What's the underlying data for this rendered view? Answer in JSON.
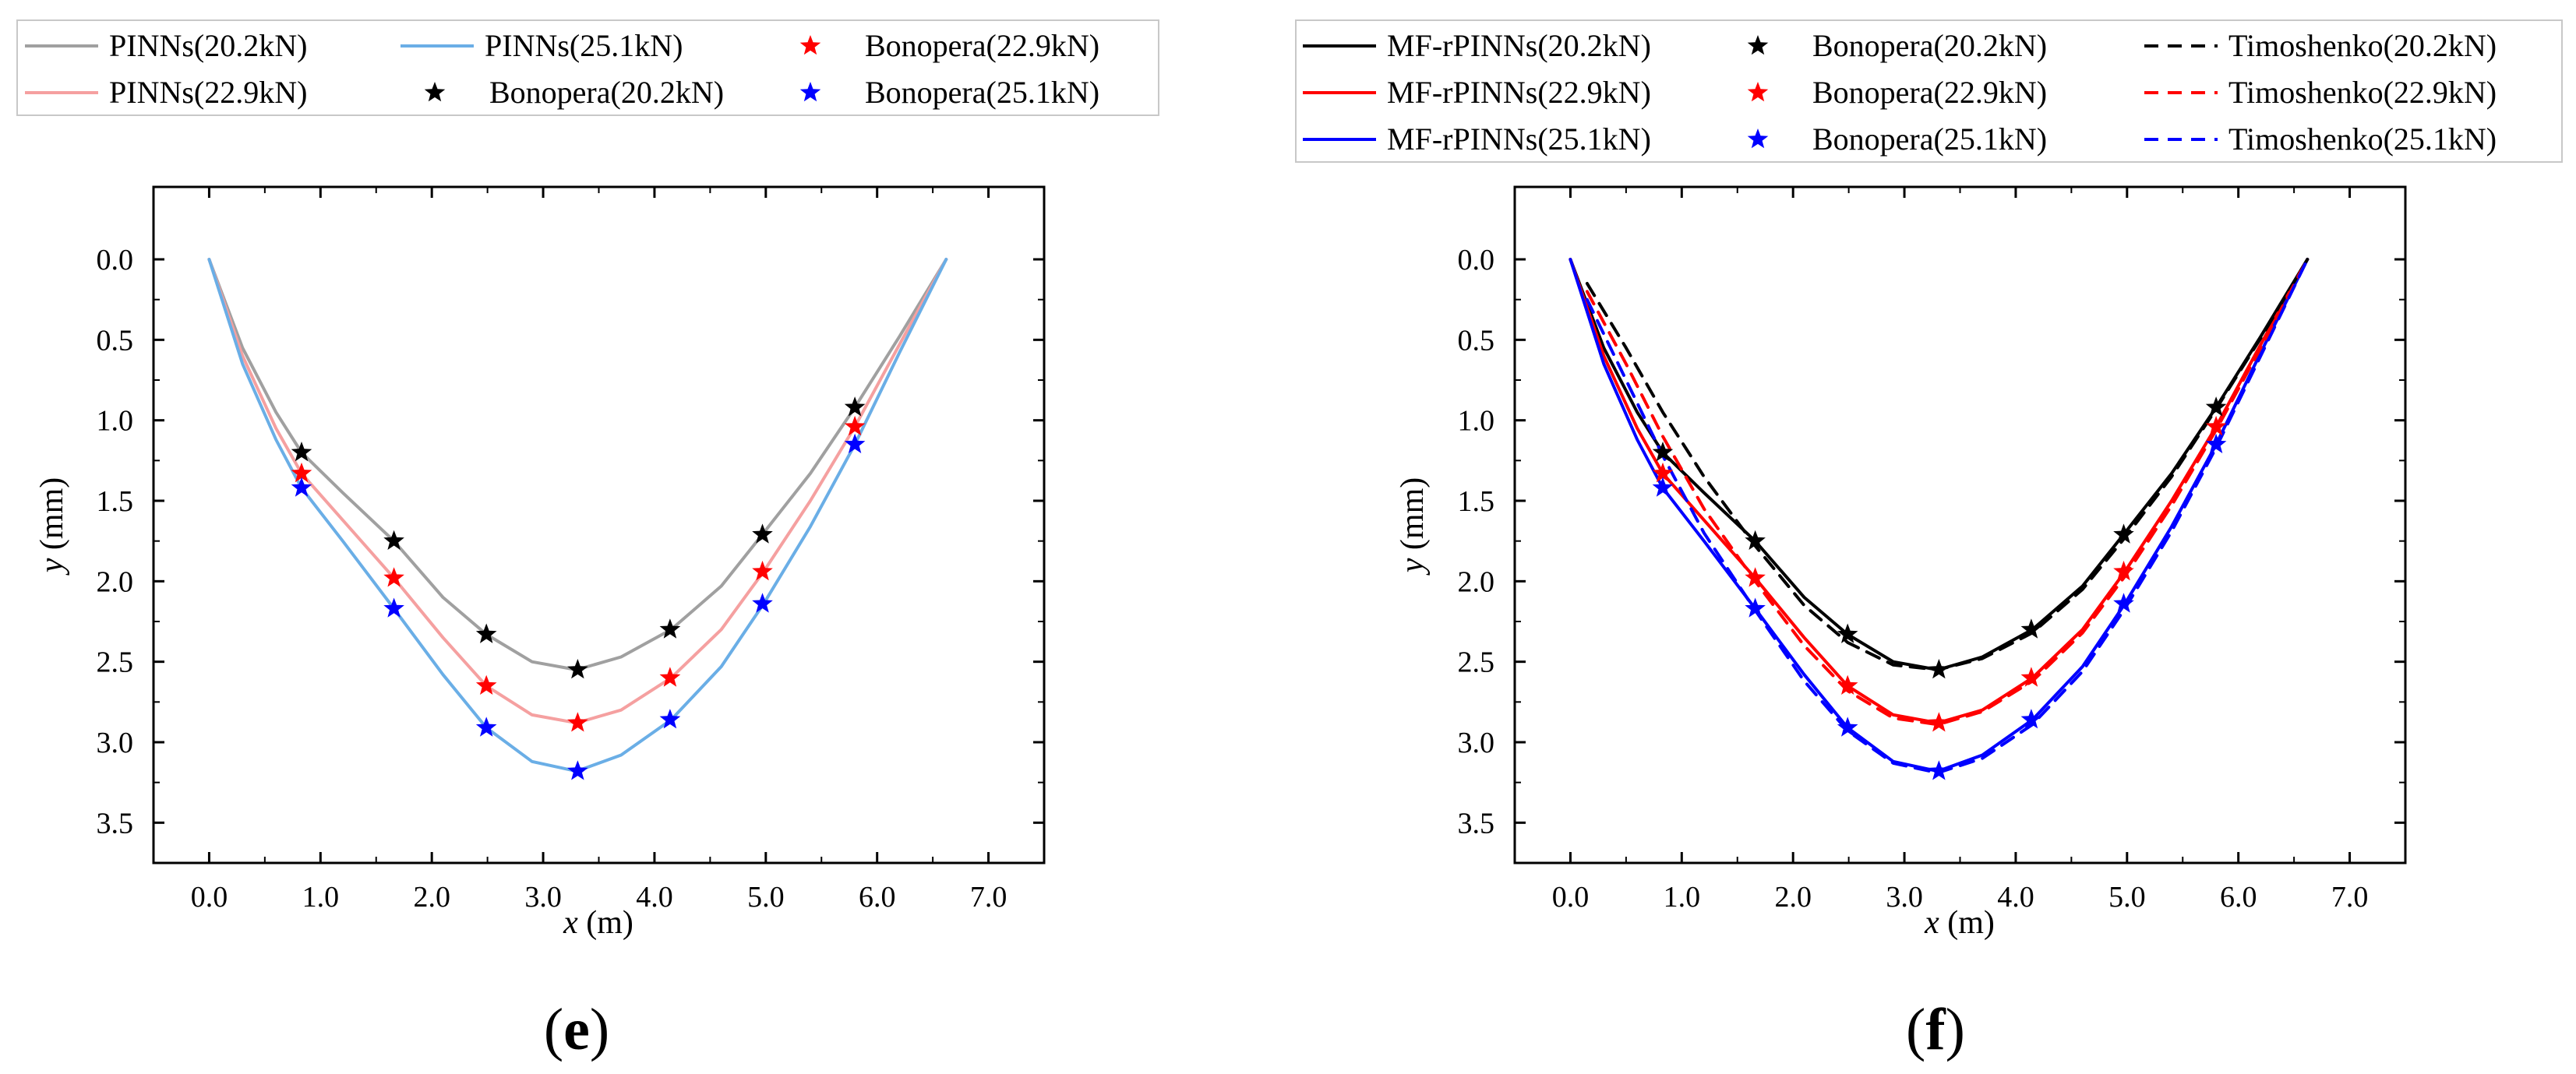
{
  "colors": {
    "pinns_20": "#a0a0a0",
    "pinns_22": "#f5a0a0",
    "pinns_25": "#6aaee6",
    "black": "#000000",
    "red": "#ff0000",
    "blue": "#0000ff"
  },
  "chart_data": [
    {
      "type": "line",
      "panel_label": "(e)",
      "panel_letter": "e",
      "xlabel_var": "x",
      "xlabel_unit": " (m)",
      "ylabel_var": "y",
      "ylabel_unit": " (mm)",
      "xlim": [
        -0.5,
        7.5
      ],
      "ylim": [
        3.75,
        -0.45
      ],
      "y_inverted": true,
      "xticks": [
        "0.0",
        "1.0",
        "2.0",
        "3.0",
        "4.0",
        "5.0",
        "6.0",
        "7.0"
      ],
      "xtick_values": [
        0,
        1,
        2,
        3,
        4,
        5,
        6,
        7
      ],
      "yticks": [
        "0.0",
        "0.5",
        "1.0",
        "1.5",
        "2.0",
        "2.5",
        "3.0",
        "3.5"
      ],
      "ytick_values": [
        0,
        0.5,
        1,
        1.5,
        2,
        2.5,
        3,
        3.5
      ],
      "legend_location": "above plot",
      "legend_columns": 3,
      "series": [
        {
          "name": "PINNs(20.2kN)",
          "kind": "line",
          "color_key": "pinns_20",
          "x": [
            0,
            0.3,
            0.6,
            0.83,
            1.2,
            1.66,
            2.1,
            2.49,
            2.9,
            3.3,
            3.7,
            4.15,
            4.6,
            4.98,
            5.4,
            5.8,
            6.2,
            6.62
          ],
          "y": [
            0,
            0.55,
            0.95,
            1.2,
            1.45,
            1.75,
            2.1,
            2.33,
            2.5,
            2.55,
            2.47,
            2.3,
            2.03,
            1.7,
            1.33,
            0.92,
            0.48,
            0
          ]
        },
        {
          "name": "PINNs(22.9kN)",
          "kind": "line",
          "color_key": "pinns_22",
          "x": [
            0,
            0.3,
            0.6,
            0.83,
            1.2,
            1.66,
            2.1,
            2.49,
            2.9,
            3.3,
            3.7,
            4.15,
            4.6,
            4.98,
            5.4,
            5.8,
            6.2,
            6.62
          ],
          "y": [
            0,
            0.6,
            1.05,
            1.33,
            1.62,
            1.98,
            2.35,
            2.65,
            2.83,
            2.88,
            2.8,
            2.6,
            2.3,
            1.94,
            1.5,
            1.04,
            0.53,
            0
          ]
        },
        {
          "name": "PINNs(25.1kN)",
          "kind": "line",
          "color_key": "pinns_25",
          "x": [
            0,
            0.3,
            0.6,
            0.83,
            1.2,
            1.66,
            2.1,
            2.49,
            2.9,
            3.3,
            3.7,
            4.15,
            4.6,
            4.98,
            5.4,
            5.8,
            6.2,
            6.62
          ],
          "y": [
            0,
            0.65,
            1.12,
            1.42,
            1.75,
            2.17,
            2.58,
            2.91,
            3.12,
            3.18,
            3.08,
            2.86,
            2.53,
            2.14,
            1.66,
            1.15,
            0.58,
            0
          ]
        },
        {
          "name": "Bonopera(20.2kN)",
          "kind": "marker",
          "color_key": "black",
          "x": [
            0.83,
            1.66,
            2.49,
            3.31,
            4.14,
            4.97,
            5.8
          ],
          "y": [
            1.2,
            1.75,
            2.33,
            2.55,
            2.3,
            1.71,
            0.92
          ]
        },
        {
          "name": "Bonopera(22.9kN)",
          "kind": "marker",
          "color_key": "red",
          "x": [
            0.83,
            1.66,
            2.49,
            3.31,
            4.14,
            4.97,
            5.8
          ],
          "y": [
            1.33,
            1.98,
            2.65,
            2.88,
            2.6,
            1.94,
            1.04
          ]
        },
        {
          "name": "Bonopera(25.1kN)",
          "kind": "marker",
          "color_key": "blue",
          "x": [
            0.83,
            1.66,
            2.49,
            3.31,
            4.14,
            4.97,
            5.8
          ],
          "y": [
            1.42,
            2.17,
            2.91,
            3.18,
            2.86,
            2.14,
            1.15
          ]
        }
      ]
    },
    {
      "type": "line",
      "panel_label": "(f)",
      "panel_letter": "f",
      "xlabel_var": "x",
      "xlabel_unit": " (m)",
      "ylabel_var": "y",
      "ylabel_unit": " (mm)",
      "xlim": [
        -0.5,
        7.5
      ],
      "ylim": [
        3.75,
        -0.45
      ],
      "y_inverted": true,
      "xticks": [
        "0.0",
        "1.0",
        "2.0",
        "3.0",
        "4.0",
        "5.0",
        "6.0",
        "7.0"
      ],
      "xtick_values": [
        0,
        1,
        2,
        3,
        4,
        5,
        6,
        7
      ],
      "yticks": [
        "0.0",
        "0.5",
        "1.0",
        "1.5",
        "2.0",
        "2.5",
        "3.0",
        "3.5"
      ],
      "ytick_values": [
        0,
        0.5,
        1,
        1.5,
        2,
        2.5,
        3,
        3.5
      ],
      "legend_location": "above plot",
      "legend_columns": 3,
      "series": [
        {
          "name": "MF-rPINNs(20.2kN)",
          "kind": "line",
          "color_key": "black",
          "x": [
            0,
            0.3,
            0.6,
            0.83,
            1.2,
            1.66,
            2.1,
            2.49,
            2.9,
            3.3,
            3.7,
            4.15,
            4.6,
            4.98,
            5.4,
            5.8,
            6.2,
            6.62
          ],
          "y": [
            0,
            0.55,
            0.95,
            1.2,
            1.45,
            1.75,
            2.1,
            2.33,
            2.5,
            2.55,
            2.47,
            2.3,
            2.03,
            1.7,
            1.33,
            0.92,
            0.48,
            0
          ]
        },
        {
          "name": "MF-rPINNs(22.9kN)",
          "kind": "line",
          "color_key": "red",
          "x": [
            0,
            0.3,
            0.6,
            0.83,
            1.2,
            1.66,
            2.1,
            2.49,
            2.9,
            3.3,
            3.7,
            4.15,
            4.6,
            4.98,
            5.4,
            5.8,
            6.2,
            6.62
          ],
          "y": [
            0,
            0.6,
            1.05,
            1.33,
            1.62,
            1.98,
            2.35,
            2.65,
            2.83,
            2.88,
            2.8,
            2.6,
            2.3,
            1.94,
            1.5,
            1.04,
            0.53,
            0
          ]
        },
        {
          "name": "MF-rPINNs(25.1kN)",
          "kind": "line",
          "color_key": "blue",
          "x": [
            0,
            0.3,
            0.6,
            0.83,
            1.2,
            1.66,
            2.1,
            2.49,
            2.9,
            3.3,
            3.7,
            4.15,
            4.6,
            4.98,
            5.4,
            5.8,
            6.2,
            6.62
          ],
          "y": [
            0,
            0.65,
            1.12,
            1.42,
            1.75,
            2.17,
            2.58,
            2.91,
            3.12,
            3.18,
            3.08,
            2.86,
            2.53,
            2.14,
            1.66,
            1.15,
            0.58,
            0
          ]
        },
        {
          "name": "Bonopera(20.2kN)",
          "kind": "marker",
          "color_key": "black",
          "x": [
            0.83,
            1.66,
            2.49,
            3.31,
            4.14,
            4.97,
            5.8
          ],
          "y": [
            1.2,
            1.75,
            2.33,
            2.55,
            2.3,
            1.71,
            0.92
          ]
        },
        {
          "name": "Bonopera(22.9kN)",
          "kind": "marker",
          "color_key": "red",
          "x": [
            0.83,
            1.66,
            2.49,
            3.31,
            4.14,
            4.97,
            5.8
          ],
          "y": [
            1.33,
            1.98,
            2.65,
            2.88,
            2.6,
            1.94,
            1.04
          ]
        },
        {
          "name": "Bonopera(25.1kN)",
          "kind": "marker",
          "color_key": "blue",
          "x": [
            0.83,
            1.66,
            2.49,
            3.31,
            4.14,
            4.97,
            5.8
          ],
          "y": [
            1.42,
            2.17,
            2.91,
            3.18,
            2.86,
            2.14,
            1.15
          ]
        },
        {
          "name": "Timoshenko(20.2kN)",
          "kind": "dashed",
          "color_key": "black",
          "x": [
            0.15,
            0.5,
            0.83,
            1.2,
            1.66,
            2.1,
            2.49,
            2.9,
            3.3,
            3.7,
            4.15,
            4.6,
            4.98,
            5.4,
            5.8,
            6.2,
            6.62
          ],
          "y": [
            0.15,
            0.55,
            0.95,
            1.35,
            1.78,
            2.15,
            2.38,
            2.52,
            2.55,
            2.48,
            2.32,
            2.05,
            1.73,
            1.35,
            0.93,
            0.49,
            0
          ]
        },
        {
          "name": "Timoshenko(22.9kN)",
          "kind": "dashed",
          "color_key": "red",
          "x": [
            0.15,
            0.5,
            0.83,
            1.2,
            1.66,
            2.1,
            2.49,
            2.9,
            3.3,
            3.7,
            4.15,
            4.6,
            4.98,
            5.4,
            5.8,
            6.2,
            6.62
          ],
          "y": [
            0.2,
            0.65,
            1.1,
            1.55,
            2.0,
            2.4,
            2.68,
            2.85,
            2.89,
            2.81,
            2.62,
            2.32,
            1.97,
            1.53,
            1.06,
            0.55,
            0
          ]
        },
        {
          "name": "Timoshenko(25.1kN)",
          "kind": "dashed",
          "color_key": "blue",
          "x": [
            0.15,
            0.5,
            0.83,
            1.2,
            1.66,
            2.1,
            2.49,
            2.9,
            3.3,
            3.7,
            4.15,
            4.6,
            4.98,
            5.4,
            5.8,
            6.2,
            6.62
          ],
          "y": [
            0.25,
            0.75,
            1.22,
            1.7,
            2.18,
            2.62,
            2.93,
            3.13,
            3.19,
            3.1,
            2.89,
            2.56,
            2.17,
            1.69,
            1.17,
            0.6,
            0
          ]
        }
      ]
    }
  ]
}
